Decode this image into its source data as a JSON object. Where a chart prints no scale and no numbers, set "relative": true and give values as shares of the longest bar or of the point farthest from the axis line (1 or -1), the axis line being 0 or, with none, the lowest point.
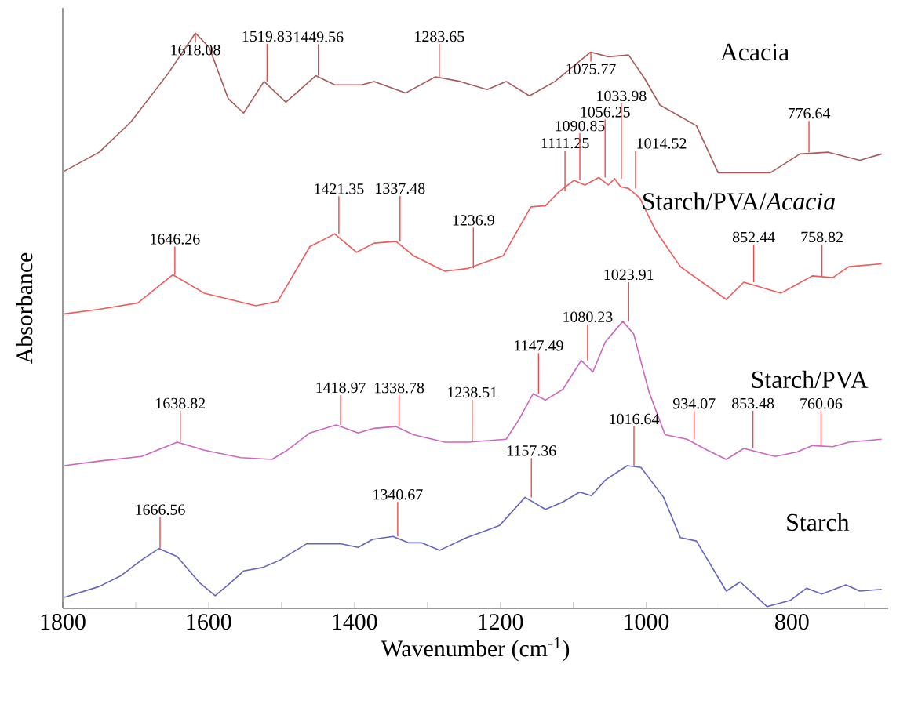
{
  "chart_data": {
    "type": "line",
    "relative": true,
    "xlabel": "Wavenumber (cm$^{-1}$)",
    "ylabel": "Absorbance",
    "xlim": [
      1800,
      668
    ],
    "xticks": [
      1800,
      {
        "value": 1700,
        "label": null
      },
      1600,
      {
        "value": 1500,
        "label": null
      },
      1400,
      {
        "value": 1300,
        "label": null
      },
      1200,
      {
        "value": 1100,
        "label": null
      },
      1000,
      {
        "value": 900,
        "label": null
      },
      800,
      {
        "value": 700,
        "label": null
      }
    ],
    "series": [
      {
        "name": "Acacia",
        "color": "#a85a5a",
        "x": [
          1798,
          1750,
          1707,
          1656,
          1618,
          1599,
          1573,
          1552,
          1524,
          1494,
          1453,
          1427,
          1390,
          1373,
          1330,
          1289,
          1255,
          1218,
          1192,
          1160,
          1125,
          1076,
          1052,
          1024,
          1002,
          981,
          931,
          901,
          866,
          830,
          789,
          750,
          707,
          677
        ],
        "values": [
          0.76,
          0.793,
          0.845,
          0.929,
          1.0,
          0.975,
          0.886,
          0.861,
          0.916,
          0.88,
          0.926,
          0.91,
          0.91,
          0.916,
          0.896,
          0.924,
          0.916,
          0.902,
          0.916,
          0.891,
          0.916,
          0.967,
          0.959,
          0.962,
          0.921,
          0.875,
          0.839,
          0.757,
          0.757,
          0.757,
          0.79,
          0.793,
          0.779,
          0.79
        ]
      },
      {
        "name": "Starch/PVA/*Acacia*",
        "color": "#f05a5a",
        "x": [
          1798,
          1750,
          1697,
          1649,
          1606,
          1535,
          1505,
          1461,
          1427,
          1397,
          1373,
          1343,
          1319,
          1276,
          1244,
          1196,
          1158,
          1138,
          1119,
          1099,
          1084,
          1065,
          1052,
          1043,
          1035,
          1024,
          1009,
          987,
          953,
          890,
          866,
          815,
          772,
          744,
          722,
          677
        ],
        "values": [
          0.512,
          0.52,
          0.531,
          0.58,
          0.548,
          0.526,
          0.534,
          0.629,
          0.651,
          0.619,
          0.635,
          0.638,
          0.613,
          0.586,
          0.591,
          0.613,
          0.698,
          0.7,
          0.725,
          0.744,
          0.736,
          0.749,
          0.736,
          0.747,
          0.733,
          0.73,
          0.714,
          0.657,
          0.594,
          0.537,
          0.567,
          0.548,
          0.578,
          0.575,
          0.594,
          0.599
        ]
      },
      {
        "name": "Starch/PVA",
        "color": "#cc66c0",
        "x": [
          1798,
          1750,
          1692,
          1643,
          1606,
          1556,
          1513,
          1492,
          1461,
          1425,
          1395,
          1373,
          1343,
          1319,
          1276,
          1244,
          1192,
          1175,
          1155,
          1138,
          1114,
          1089,
          1073,
          1056,
          1032,
          1017,
          996,
          974,
          944,
          916,
          890,
          866,
          823,
          793,
          772,
          744,
          722,
          677
        ],
        "values": [
          0.248,
          0.256,
          0.264,
          0.289,
          0.275,
          0.262,
          0.259,
          0.275,
          0.305,
          0.319,
          0.305,
          0.313,
          0.316,
          0.302,
          0.289,
          0.289,
          0.294,
          0.327,
          0.373,
          0.362,
          0.381,
          0.431,
          0.411,
          0.463,
          0.499,
          0.477,
          0.376,
          0.302,
          0.294,
          0.275,
          0.259,
          0.278,
          0.264,
          0.272,
          0.283,
          0.281,
          0.289,
          0.294
        ]
      },
      {
        "name": "Starch",
        "color": "#6464c0",
        "x": [
          1798,
          1750,
          1720,
          1692,
          1668,
          1643,
          1612,
          1591,
          1573,
          1552,
          1526,
          1502,
          1466,
          1418,
          1395,
          1375,
          1347,
          1326,
          1308,
          1283,
          1246,
          1218,
          1201,
          1166,
          1138,
          1114,
          1091,
          1075,
          1056,
          1026,
          1007,
          976,
          953,
          931,
          890,
          871,
          834,
          802,
          780,
          759,
          726,
          707,
          677
        ],
        "values": [
          0.019,
          0.038,
          0.057,
          0.084,
          0.104,
          0.09,
          0.044,
          0.022,
          0.041,
          0.065,
          0.071,
          0.084,
          0.112,
          0.112,
          0.106,
          0.12,
          0.125,
          0.114,
          0.114,
          0.101,
          0.123,
          0.136,
          0.144,
          0.193,
          0.172,
          0.185,
          0.202,
          0.196,
          0.223,
          0.248,
          0.245,
          0.193,
          0.123,
          0.117,
          0.03,
          0.046,
          0.003,
          0.014,
          0.035,
          0.025,
          0.041,
          0.03,
          0.033
        ]
      }
    ],
    "annotations": [
      {
        "text": "1618.08",
        "x": 1618.08,
        "y": 1.0
      },
      {
        "text": "1519.83",
        "x": 1519.83,
        "y": 0.916
      },
      {
        "text": "1449.56",
        "x": 1449.56,
        "y": 0.926
      },
      {
        "text": "1283.65",
        "x": 1283.65,
        "y": 0.924
      },
      {
        "text": "1075.77",
        "x": 1075.77,
        "y": 0.967
      },
      {
        "text": "776.64",
        "x": 776.64,
        "y": 0.793
      },
      {
        "text": "1646.26",
        "x": 1646.26,
        "y": 0.58
      },
      {
        "text": "1421.35",
        "x": 1421.35,
        "y": 0.651
      },
      {
        "text": "1337.48",
        "x": 1337.48,
        "y": 0.638
      },
      {
        "text": "1236.9",
        "x": 1236.9,
        "y": 0.591
      },
      {
        "text": "1111.25",
        "x": 1111.25,
        "y": 0.725
      },
      {
        "text": "1090.85",
        "x": 1090.85,
        "y": 0.744
      },
      {
        "text": "1056.25",
        "x": 1056.25,
        "y": 0.749
      },
      {
        "text": "1033.98",
        "x": 1033.98,
        "y": 0.747
      },
      {
        "text": "1014.52",
        "x": 1014.52,
        "y": 0.73
      },
      {
        "text": "852.44",
        "x": 852.44,
        "y": 0.567
      },
      {
        "text": "758.82",
        "x": 758.82,
        "y": 0.578
      },
      {
        "text": "1638.82",
        "x": 1638.82,
        "y": 0.289
      },
      {
        "text": "1418.97",
        "x": 1418.97,
        "y": 0.319
      },
      {
        "text": "1338.78",
        "x": 1338.78,
        "y": 0.316
      },
      {
        "text": "1238.51",
        "x": 1238.51,
        "y": 0.289
      },
      {
        "text": "1147.49",
        "x": 1147.49,
        "y": 0.373
      },
      {
        "text": "1080.23",
        "x": 1080.23,
        "y": 0.431
      },
      {
        "text": "1023.91",
        "x": 1023.91,
        "y": 0.499
      },
      {
        "text": "934.07",
        "x": 934.07,
        "y": 0.294
      },
      {
        "text": "853.48",
        "x": 853.48,
        "y": 0.278
      },
      {
        "text": "760.06",
        "x": 760.06,
        "y": 0.283
      },
      {
        "text": "1666.56",
        "x": 1666.56,
        "y": 0.104
      },
      {
        "text": "1340.67",
        "x": 1340.67,
        "y": 0.125
      },
      {
        "text": "1157.36",
        "x": 1157.36,
        "y": 0.193
      },
      {
        "text": "1016.64",
        "x": 1016.64,
        "y": 0.248
      }
    ]
  }
}
